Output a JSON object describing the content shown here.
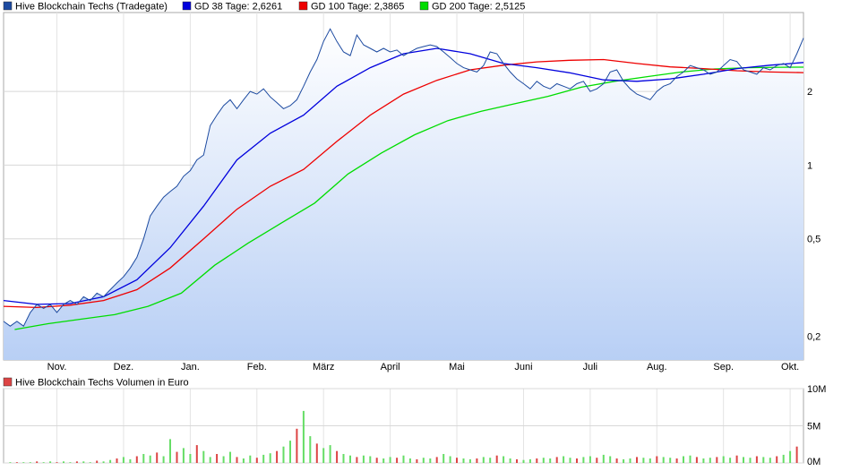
{
  "chart_data": [
    {
      "type": "line",
      "title": "",
      "y_scale": "log",
      "ylim": [
        0.16,
        4.2
      ],
      "months": [
        "Nov.",
        "Dez.",
        "Jan.",
        "Feb.",
        "März",
        "April",
        "Mai",
        "Juni",
        "Juli",
        "Aug.",
        "Sep.",
        "Okt."
      ],
      "yticks": [
        0.2,
        0.5,
        1,
        2
      ],
      "ytick_labels": [
        "0,2",
        "0,5",
        "1",
        "2"
      ],
      "grid": true,
      "legend_position": "top-left",
      "legend": [
        {
          "label": "Hive Blockchain Techs (Tradegate)",
          "color": "#1c4aa0"
        },
        {
          "label": "GD 38 Tage: 2,6261",
          "color": "#0000dd"
        },
        {
          "label": "GD 100 Tage: 2,3865",
          "color": "#ee0000"
        },
        {
          "label": "GD 200 Tage: 2,5125",
          "color": "#00dd00"
        }
      ],
      "series": [
        {
          "name": "Hive Blockchain Techs (Tradegate)",
          "color": "#1c4aa0",
          "x": [
            0,
            3,
            6,
            9,
            12,
            15,
            18,
            21,
            24,
            27,
            30,
            33,
            36,
            39,
            42,
            45,
            48,
            51,
            54,
            57,
            60,
            63,
            66,
            69,
            72,
            75,
            78,
            81,
            84,
            87,
            90,
            93,
            96,
            99,
            102,
            105,
            108,
            111,
            114,
            117,
            120,
            123,
            126,
            129,
            132,
            135,
            138,
            141,
            144,
            147,
            150,
            153,
            156,
            159,
            162,
            165,
            168,
            171,
            174,
            177,
            180,
            183,
            186,
            189,
            192,
            195,
            198,
            201,
            204,
            207,
            210,
            213,
            216,
            219,
            222,
            225,
            228,
            231,
            234,
            237,
            240,
            243,
            246,
            249,
            252,
            255,
            258,
            261,
            264,
            267,
            270,
            273,
            276,
            279,
            282,
            285,
            288,
            291,
            294,
            297,
            300,
            303,
            306,
            309,
            312,
            315,
            318,
            321,
            324,
            327,
            330,
            333,
            336,
            339,
            342,
            345,
            348,
            351,
            354,
            357,
            360
          ],
          "y": [
            0.23,
            0.22,
            0.23,
            0.22,
            0.25,
            0.27,
            0.26,
            0.27,
            0.25,
            0.27,
            0.28,
            0.27,
            0.29,
            0.28,
            0.3,
            0.29,
            0.31,
            0.33,
            0.35,
            0.38,
            0.42,
            0.5,
            0.62,
            0.68,
            0.74,
            0.78,
            0.82,
            0.9,
            0.95,
            1.05,
            1.1,
            1.45,
            1.6,
            1.75,
            1.85,
            1.7,
            1.85,
            2.0,
            1.95,
            2.05,
            1.9,
            1.8,
            1.7,
            1.75,
            1.85,
            2.1,
            2.4,
            2.7,
            3.2,
            3.6,
            3.2,
            2.9,
            2.8,
            3.4,
            3.1,
            3.0,
            2.9,
            3.0,
            2.9,
            2.95,
            2.8,
            2.9,
            3.0,
            3.05,
            3.1,
            3.05,
            2.9,
            2.75,
            2.6,
            2.5,
            2.45,
            2.4,
            2.55,
            2.9,
            2.85,
            2.6,
            2.4,
            2.25,
            2.15,
            2.05,
            2.2,
            2.1,
            2.05,
            2.15,
            2.1,
            2.05,
            2.15,
            2.2,
            2.0,
            2.05,
            2.15,
            2.4,
            2.45,
            2.2,
            2.05,
            1.95,
            1.9,
            1.85,
            2.0,
            2.1,
            2.15,
            2.3,
            2.4,
            2.55,
            2.5,
            2.45,
            2.35,
            2.4,
            2.55,
            2.7,
            2.65,
            2.45,
            2.4,
            2.35,
            2.5,
            2.45,
            2.55,
            2.6,
            2.5,
            2.85,
            3.3
          ]
        },
        {
          "name": "GD 38 Tage: 2,6261",
          "color": "#0000dd",
          "x": [
            0,
            15,
            30,
            45,
            60,
            75,
            90,
            105,
            120,
            135,
            150,
            165,
            180,
            195,
            210,
            225,
            240,
            255,
            270,
            285,
            300,
            315,
            330,
            345,
            360
          ],
          "y": [
            0.28,
            0.27,
            0.272,
            0.29,
            0.34,
            0.46,
            0.68,
            1.05,
            1.35,
            1.6,
            2.1,
            2.5,
            2.85,
            3.0,
            2.85,
            2.6,
            2.5,
            2.38,
            2.23,
            2.2,
            2.25,
            2.35,
            2.48,
            2.56,
            2.626
          ]
        },
        {
          "name": "GD 100 Tage: 2,3865",
          "color": "#ee0000",
          "x": [
            0,
            15,
            30,
            45,
            60,
            75,
            90,
            105,
            120,
            135,
            150,
            165,
            180,
            195,
            210,
            225,
            240,
            255,
            270,
            285,
            300,
            315,
            330,
            345,
            360
          ],
          "y": [
            0.265,
            0.262,
            0.268,
            0.28,
            0.31,
            0.38,
            0.5,
            0.66,
            0.82,
            0.96,
            1.25,
            1.6,
            1.95,
            2.22,
            2.45,
            2.56,
            2.64,
            2.68,
            2.7,
            2.6,
            2.52,
            2.48,
            2.43,
            2.4,
            2.387
          ]
        },
        {
          "name": "GD 200 Tage: 2,5125",
          "color": "#00dd00",
          "x": [
            5,
            20,
            35,
            50,
            65,
            80,
            95,
            110,
            125,
            140,
            155,
            170,
            185,
            200,
            215,
            230,
            245,
            260,
            275,
            290,
            305,
            320,
            335,
            350,
            360
          ],
          "y": [
            0.213,
            0.225,
            0.235,
            0.245,
            0.265,
            0.3,
            0.39,
            0.48,
            0.58,
            0.7,
            0.92,
            1.12,
            1.33,
            1.52,
            1.66,
            1.78,
            1.91,
            2.08,
            2.2,
            2.3,
            2.4,
            2.47,
            2.5,
            2.51,
            2.513
          ]
        }
      ]
    },
    {
      "type": "bar",
      "title": "",
      "ylim": [
        0,
        10
      ],
      "yunit": "M",
      "yticks": [
        0,
        5,
        10
      ],
      "ytick_labels": [
        "0M",
        "5M",
        "10M"
      ],
      "legend_position": "top-left",
      "legend": [
        {
          "label": "Hive Blockchain Techs Volumen in Euro",
          "color": "#dd4444"
        }
      ],
      "x": [
        3,
        6,
        9,
        12,
        15,
        18,
        21,
        24,
        27,
        30,
        33,
        36,
        39,
        42,
        45,
        48,
        51,
        54,
        57,
        60,
        63,
        66,
        69,
        72,
        75,
        78,
        81,
        84,
        87,
        90,
        93,
        96,
        99,
        102,
        105,
        108,
        111,
        114,
        117,
        120,
        123,
        126,
        129,
        132,
        135,
        138,
        141,
        144,
        147,
        150,
        153,
        156,
        159,
        162,
        165,
        168,
        171,
        174,
        177,
        180,
        183,
        186,
        189,
        192,
        195,
        198,
        201,
        204,
        207,
        210,
        213,
        216,
        219,
        222,
        225,
        228,
        231,
        234,
        237,
        240,
        243,
        246,
        249,
        252,
        255,
        258,
        261,
        264,
        267,
        270,
        273,
        276,
        279,
        282,
        285,
        288,
        291,
        294,
        297,
        300,
        303,
        306,
        309,
        312,
        315,
        318,
        321,
        324,
        327,
        330,
        333,
        336,
        339,
        342,
        345,
        348,
        351,
        354,
        357
      ],
      "values": [
        0.1,
        0.1,
        0.1,
        0.1,
        0.2,
        0.1,
        0.2,
        0.1,
        0.2,
        0.1,
        0.2,
        0.2,
        0.1,
        0.3,
        0.2,
        0.4,
        0.6,
        0.8,
        0.5,
        0.9,
        1.2,
        1.0,
        1.4,
        0.9,
        3.2,
        1.5,
        2.0,
        1.2,
        2.4,
        1.6,
        0.8,
        1.2,
        0.9,
        1.5,
        0.8,
        0.6,
        1.0,
        0.7,
        1.1,
        1.3,
        1.6,
        2.2,
        3.0,
        4.6,
        7.0,
        3.6,
        2.6,
        2.0,
        2.4,
        1.6,
        1.2,
        1.0,
        0.8,
        1.0,
        0.9,
        0.7,
        0.6,
        0.8,
        0.7,
        1.0,
        0.6,
        0.5,
        0.7,
        0.6,
        0.8,
        1.2,
        0.9,
        0.7,
        0.6,
        0.5,
        0.6,
        0.8,
        0.7,
        1.0,
        0.9,
        0.6,
        0.5,
        0.4,
        0.5,
        0.6,
        0.7,
        0.6,
        0.8,
        0.9,
        0.7,
        0.6,
        0.8,
        0.9,
        0.7,
        1.1,
        0.9,
        0.6,
        0.5,
        0.6,
        0.8,
        0.7,
        0.6,
        0.9,
        0.8,
        0.7,
        0.6,
        0.9,
        1.0,
        0.8,
        0.6,
        0.7,
        0.8,
        0.9,
        0.7,
        1.0,
        0.8,
        0.7,
        0.9,
        0.8,
        0.7,
        0.9,
        1.1,
        1.6,
        2.2
      ],
      "colors_up_down": [
        "#66dd66",
        "#dd4444"
      ]
    }
  ]
}
